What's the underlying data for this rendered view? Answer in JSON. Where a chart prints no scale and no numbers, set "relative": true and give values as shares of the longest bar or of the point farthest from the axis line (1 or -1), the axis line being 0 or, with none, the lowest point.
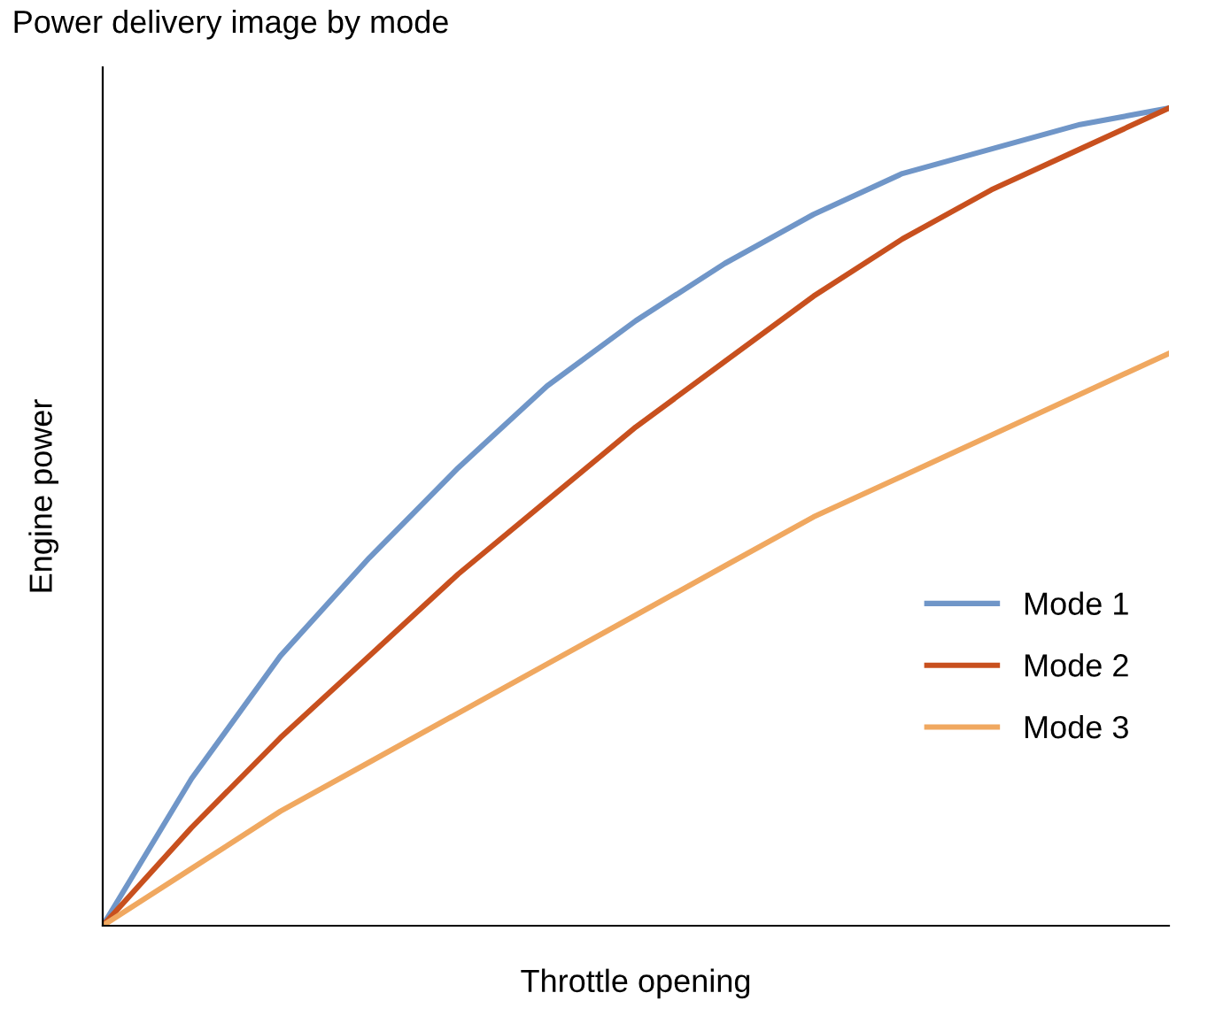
{
  "chart_data": {
    "type": "line",
    "title": "Power delivery image by mode",
    "xlabel": "Throttle opening",
    "ylabel": "Engine power",
    "relative": true,
    "legend": "center right",
    "grid": false,
    "marker": "none",
    "line_style": "solid",
    "categories": [
      null,
      null,
      null,
      null,
      null,
      null,
      null,
      null,
      null,
      null,
      null,
      null,
      null
    ],
    "series": [
      {
        "name": "Mode 1",
        "color": "#7096c8",
        "values": [
          0,
          0.18,
          0.33,
          0.45,
          0.56,
          0.66,
          0.74,
          0.81,
          0.87,
          0.92,
          0.95,
          0.98,
          1
        ]
      },
      {
        "name": "Mode 2",
        "color": "#c8501e",
        "values": [
          0,
          0.12,
          0.23,
          0.33,
          0.43,
          0.52,
          0.61,
          0.69,
          0.77,
          0.84,
          0.9,
          0.95,
          1
        ]
      },
      {
        "name": "Mode 3",
        "color": "#f0a860",
        "values": [
          0,
          0.07,
          0.14,
          0.2,
          0.26,
          0.32,
          0.38,
          0.44,
          0.5,
          0.55,
          0.6,
          0.65,
          0.7
        ]
      }
    ]
  }
}
